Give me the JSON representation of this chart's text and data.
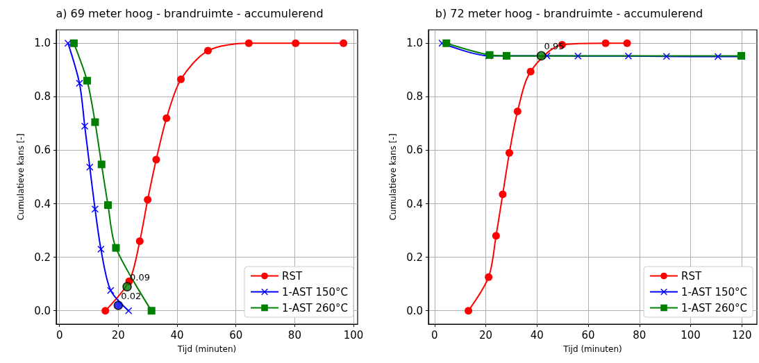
{
  "chart_data": [
    {
      "type": "line",
      "title": "a) 69 meter hoog - brandruimte - accumulerend",
      "xlabel": "Tijd (minuten)",
      "ylabel": "Cumulatieve kans [-]",
      "xlim": [
        -1.1,
        101.4
      ],
      "xticks": [
        0,
        20,
        40,
        60,
        80,
        100
      ],
      "ylim": [
        -0.05,
        1.05
      ],
      "yticks": [
        {
          "value": 0,
          "label": "0.0"
        },
        {
          "value": 0.2,
          "label": "0.2"
        },
        {
          "value": 0.4,
          "label": "0.4"
        },
        {
          "value": 0.6,
          "label": "0.6"
        },
        {
          "value": 0.8,
          "label": "0.8"
        },
        {
          "value": 1,
          "label": "1.0"
        }
      ],
      "grid": true,
      "legend": "bottom right",
      "series": [
        {
          "name": "RST",
          "color": "#ff0000",
          "marker": "circle",
          "x": [
            15.6,
            23.7,
            27.3,
            30.0,
            32.9,
            36.4,
            41.3,
            50.5,
            64.4,
            80.3,
            96.6
          ],
          "values": [
            0,
            0.11,
            0.26,
            0.415,
            0.565,
            0.72,
            0.865,
            0.972,
            1.0,
            1.0,
            1.0
          ]
        },
        {
          "name": "1-AST 150°C",
          "color": "#0000ff",
          "marker": "cross",
          "x": [
            2.9,
            6.8,
            8.6,
            10.3,
            12.1,
            14.1,
            17.4,
            23.5
          ],
          "values": [
            1.0,
            0.85,
            0.69,
            0.537,
            0.38,
            0.23,
            0.076,
            0.0
          ]
        },
        {
          "name": "1-AST 260°C",
          "color": "#008000",
          "marker": "square",
          "x": [
            4.9,
            9.4,
            12.1,
            14.3,
            16.5,
            19.2,
            31.3
          ],
          "values": [
            1.0,
            0.86,
            0.705,
            0.547,
            0.395,
            0.235,
            0.0
          ]
        },
        {
          "type": "scatter",
          "color": "#0000ff",
          "marker": "circle",
          "x": [
            20
          ],
          "values": [
            0.02
          ]
        },
        {
          "type": "scatter",
          "color": "#008000",
          "marker": "circle",
          "x": [
            23
          ],
          "values": [
            0.09
          ]
        }
      ],
      "annotations": [
        {
          "text": "0.02",
          "x": 20,
          "y": 0.02
        },
        {
          "text": "0.09",
          "x": 23,
          "y": 0.09
        }
      ]
    },
    {
      "type": "line",
      "title": "b) 72 meter hoog - brandruimte - accumulerend",
      "xlabel": "Tijd (minuten)",
      "ylabel": "Cumulatieve kans [-]",
      "xlim": [
        -2.4,
        125.9
      ],
      "xticks": [
        0,
        20,
        40,
        60,
        80,
        100,
        120
      ],
      "ylim": [
        -0.05,
        1.05
      ],
      "yticks": [
        {
          "value": 0,
          "label": "0.0"
        },
        {
          "value": 0.2,
          "label": "0.2"
        },
        {
          "value": 0.4,
          "label": "0.4"
        },
        {
          "value": 0.6,
          "label": "0.6"
        },
        {
          "value": 0.8,
          "label": "0.8"
        },
        {
          "value": 1,
          "label": "1.0"
        }
      ],
      "grid": true,
      "legend": "bottom right",
      "series": [
        {
          "name": "RST",
          "color": "#ff0000",
          "marker": "circle",
          "x": [
            13.2,
            21.1,
            24.0,
            26.6,
            29.2,
            32.4,
            37.5,
            49.8,
            66.8,
            75.2
          ],
          "values": [
            0,
            0.126,
            0.28,
            0.435,
            0.59,
            0.745,
            0.894,
            0.994,
            1.0,
            1.0
          ]
        },
        {
          "name": "1-AST 150°C",
          "color": "#0000ff",
          "marker": "cross",
          "x": [
            2.9,
            21.1,
            43.9,
            56.0,
            75.7,
            90.6,
            110.7,
            120
          ],
          "values": [
            1.0,
            0.953,
            0.953,
            0.952,
            0.952,
            0.951,
            0.95,
            0.95
          ]
        },
        {
          "name": "1-AST 260°C",
          "color": "#008000",
          "marker": "square",
          "x": [
            4.6,
            21.5,
            28.1,
            119.8
          ],
          "values": [
            1.0,
            0.956,
            0.953,
            0.953
          ]
        },
        {
          "type": "scatter",
          "color": "#008000",
          "marker": "circle",
          "x": [
            41.7
          ],
          "values": [
            0.953
          ]
        }
      ],
      "annotations": [
        {
          "text": "0.95",
          "x": 41.7,
          "y": 0.953
        }
      ]
    }
  ]
}
